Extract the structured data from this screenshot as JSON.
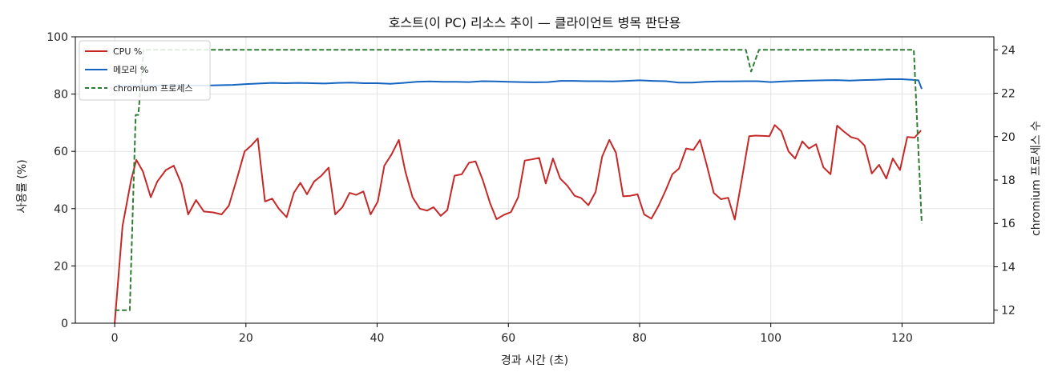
{
  "chart_data": {
    "type": "line",
    "title": "호스트(이 PC) 리소스 추이 — 클라이언트 병목 판단용",
    "xlabel": "경과 시간 (초)",
    "ylabel": "사용률 (%)",
    "ylabel_right": "chromium 프로세스 수",
    "xlim": [
      -6,
      134
    ],
    "ylim": [
      0,
      100
    ],
    "ylim_right": [
      11.4,
      24.6
    ],
    "x_ticks": [
      0,
      20,
      40,
      60,
      80,
      100,
      120
    ],
    "y_ticks": [
      0,
      20,
      40,
      60,
      80,
      100
    ],
    "y_ticks_right": [
      12,
      14,
      16,
      18,
      20,
      22,
      24
    ],
    "grid": true,
    "legend": "top-left",
    "series": [
      {
        "name": "CPU %",
        "axis": "left",
        "color": "#c62828",
        "dash": "solid",
        "points": [
          [
            0,
            0
          ],
          [
            1.2,
            34
          ],
          [
            2.5,
            50
          ],
          [
            3.3,
            57
          ],
          [
            4.3,
            53
          ],
          [
            5.5,
            44
          ],
          [
            6.5,
            49.5
          ],
          [
            7.8,
            53.5
          ],
          [
            9,
            55
          ],
          [
            10.2,
            48.5
          ],
          [
            11.2,
            38
          ],
          [
            12.4,
            43
          ],
          [
            13.6,
            39
          ],
          [
            15,
            38.7
          ],
          [
            16.3,
            38
          ],
          [
            17.4,
            41
          ],
          [
            18.7,
            51
          ],
          [
            19.8,
            60
          ],
          [
            20.8,
            62
          ],
          [
            21.8,
            64.5
          ],
          [
            22.9,
            42.5
          ],
          [
            24,
            43.5
          ],
          [
            25,
            40
          ],
          [
            26.2,
            37
          ],
          [
            27.3,
            45.5
          ],
          [
            28.3,
            49
          ],
          [
            29.3,
            45
          ],
          [
            30.4,
            49.5
          ],
          [
            31.5,
            51.5
          ],
          [
            32.6,
            54.3
          ],
          [
            33.6,
            38
          ],
          [
            34.7,
            40.5
          ],
          [
            35.8,
            45.5
          ],
          [
            36.8,
            44.8
          ],
          [
            37.9,
            46
          ],
          [
            39,
            38
          ],
          [
            40.1,
            42.5
          ],
          [
            41.1,
            55
          ],
          [
            42.2,
            59
          ],
          [
            43.3,
            64
          ],
          [
            44.3,
            53
          ],
          [
            45.4,
            44
          ],
          [
            46.5,
            40
          ],
          [
            47.6,
            39.3
          ],
          [
            48.6,
            40.5
          ],
          [
            49.7,
            37.5
          ],
          [
            50.7,
            39.5
          ],
          [
            51.8,
            51.5
          ],
          [
            52.9,
            52
          ],
          [
            54,
            56
          ],
          [
            55,
            56.5
          ],
          [
            56.1,
            50
          ],
          [
            57.2,
            42
          ],
          [
            58.2,
            36.3
          ],
          [
            59.3,
            37.8
          ],
          [
            60.4,
            38.8
          ],
          [
            61.5,
            44
          ],
          [
            62.5,
            56.8
          ],
          [
            63.6,
            57.2
          ],
          [
            64.7,
            57.7
          ],
          [
            65.7,
            48.8
          ],
          [
            66.8,
            57.5
          ],
          [
            67.9,
            50.5
          ],
          [
            69,
            48
          ],
          [
            70.1,
            44.5
          ],
          [
            71.1,
            43.7
          ],
          [
            72.2,
            41.2
          ],
          [
            73.3,
            45.8
          ],
          [
            74.3,
            58.2
          ],
          [
            75.4,
            64
          ],
          [
            76.4,
            59.5
          ],
          [
            77.5,
            44.3
          ],
          [
            78.6,
            44.5
          ],
          [
            79.7,
            45
          ],
          [
            80.7,
            38
          ],
          [
            81.8,
            36.5
          ],
          [
            82.9,
            41
          ],
          [
            84,
            46.5
          ],
          [
            85,
            52
          ],
          [
            86,
            54
          ],
          [
            87.1,
            61
          ],
          [
            88.2,
            60.5
          ],
          [
            89.2,
            64
          ],
          [
            90.2,
            55.5
          ],
          [
            91.3,
            45.5
          ],
          [
            92.4,
            43.3
          ],
          [
            93.5,
            43.8
          ],
          [
            94.5,
            36.2
          ],
          [
            95.6,
            50.5
          ],
          [
            96.7,
            65.3
          ],
          [
            97.7,
            65.5
          ],
          [
            98.8,
            65.4
          ],
          [
            99.8,
            65.3
          ],
          [
            100.6,
            69.2
          ],
          [
            101.6,
            67
          ],
          [
            102.7,
            60
          ],
          [
            103.7,
            57.5
          ],
          [
            104.8,
            63.5
          ],
          [
            105.8,
            61
          ],
          [
            106.9,
            62.5
          ],
          [
            108,
            54.5
          ],
          [
            109.1,
            52
          ],
          [
            110.1,
            69
          ],
          [
            111.1,
            67
          ],
          [
            112.2,
            65
          ],
          [
            113.3,
            64.3
          ],
          [
            114.3,
            62
          ],
          [
            115.4,
            52.3
          ],
          [
            116.5,
            55.3
          ],
          [
            117.6,
            50.5
          ],
          [
            118.6,
            57.5
          ],
          [
            119.7,
            53.5
          ],
          [
            120.8,
            65
          ],
          [
            121.9,
            64.8
          ],
          [
            122.9,
            67.3
          ]
        ]
      },
      {
        "name": "메모리 %",
        "axis": "left",
        "color": "#1565c0",
        "dash": "solid",
        "points": [
          [
            0,
            82.8
          ],
          [
            2,
            82.9
          ],
          [
            4,
            83
          ],
          [
            6,
            83
          ],
          [
            8,
            83
          ],
          [
            10,
            83
          ],
          [
            12,
            83
          ],
          [
            14,
            83
          ],
          [
            16,
            83.1
          ],
          [
            18,
            83.2
          ],
          [
            20,
            83.5
          ],
          [
            22,
            83.7
          ],
          [
            24,
            83.9
          ],
          [
            26,
            83.8
          ],
          [
            28,
            83.9
          ],
          [
            30,
            83.8
          ],
          [
            32,
            83.7
          ],
          [
            34,
            83.9
          ],
          [
            36,
            84
          ],
          [
            38,
            83.8
          ],
          [
            40,
            83.8
          ],
          [
            42,
            83.6
          ],
          [
            44,
            83.9
          ],
          [
            46,
            84.3
          ],
          [
            48,
            84.4
          ],
          [
            50,
            84.3
          ],
          [
            52,
            84.3
          ],
          [
            54,
            84.2
          ],
          [
            56,
            84.5
          ],
          [
            58,
            84.4
          ],
          [
            60,
            84.3
          ],
          [
            62,
            84.2
          ],
          [
            64,
            84.1
          ],
          [
            66,
            84.2
          ],
          [
            68,
            84.6
          ],
          [
            70,
            84.6
          ],
          [
            72,
            84.5
          ],
          [
            74,
            84.5
          ],
          [
            76,
            84.4
          ],
          [
            78,
            84.6
          ],
          [
            80,
            84.8
          ],
          [
            82,
            84.6
          ],
          [
            84,
            84.5
          ],
          [
            86,
            84
          ],
          [
            88,
            84
          ],
          [
            90,
            84.3
          ],
          [
            92,
            84.4
          ],
          [
            94,
            84.4
          ],
          [
            96,
            84.5
          ],
          [
            98,
            84.5
          ],
          [
            100,
            84.2
          ],
          [
            102,
            84.4
          ],
          [
            104,
            84.6
          ],
          [
            106,
            84.7
          ],
          [
            108,
            84.8
          ],
          [
            110,
            84.9
          ],
          [
            112,
            84.7
          ],
          [
            114,
            84.9
          ],
          [
            116,
            85
          ],
          [
            118,
            85.2
          ],
          [
            120,
            85.2
          ],
          [
            121.5,
            85
          ],
          [
            122.5,
            84.8
          ],
          [
            123,
            81.8
          ]
        ]
      },
      {
        "name": "chromium 프로세스",
        "axis": "right",
        "color": "#2e7d32",
        "dash": "dashed",
        "points": [
          [
            0,
            12
          ],
          [
            2.3,
            12
          ],
          [
            3.2,
            21
          ],
          [
            3.6,
            21
          ],
          [
            4.4,
            24
          ],
          [
            96.2,
            24
          ],
          [
            97,
            23
          ],
          [
            98.2,
            24
          ],
          [
            121.8,
            24
          ],
          [
            123,
            16
          ]
        ]
      }
    ]
  }
}
